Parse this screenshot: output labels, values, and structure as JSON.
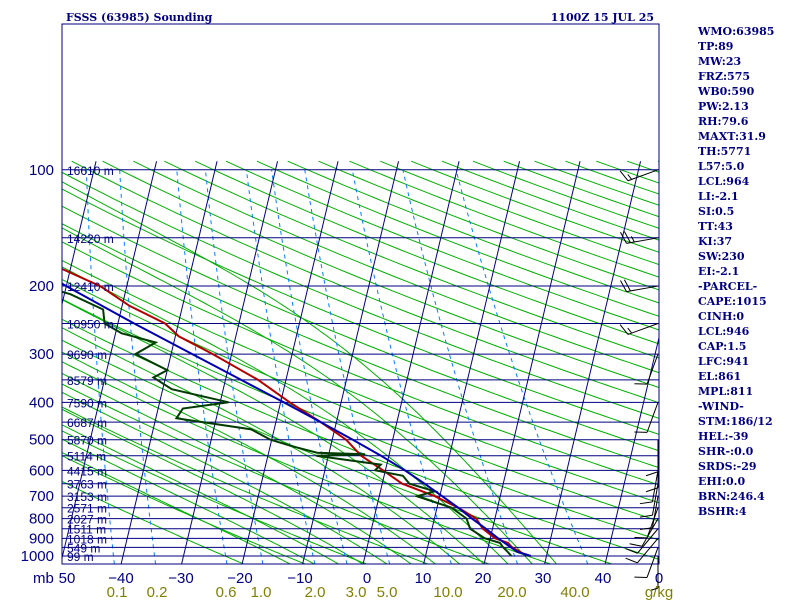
{
  "chart_data": {
    "type": "line",
    "title": "FSSS (63985) Sounding",
    "valid_time": "1100Z 15 JUL 25",
    "pressure_axis_label": "mb",
    "temperature_axis_label": "",
    "pressure_range": [
      1000,
      100
    ],
    "temperature_range": [
      -50,
      0
    ],
    "pressure_ticks": [
      "100",
      "200",
      "300",
      "400",
      "500",
      "600",
      "700",
      "800",
      "900",
      "1000"
    ],
    "temperature_ticks": [
      "50",
      "−40",
      "−30",
      "−20",
      "−10",
      "0",
      "10",
      "20",
      "30",
      "40",
      "0"
    ],
    "mixing_ratio_ticks": [
      "0.1",
      "0.2",
      "0.6",
      "1.0",
      "2.0",
      "3.0",
      "5.0",
      "10.0",
      "20.0",
      "40.0",
      "g/kg"
    ],
    "height_levels": [
      {
        "p": 100,
        "label": "16610 m"
      },
      {
        "p": 150,
        "label": "14220 m"
      },
      {
        "p": 200,
        "label": "12410 m"
      },
      {
        "p": 250,
        "label": "10950 m"
      },
      {
        "p": 300,
        "label": "9690 m"
      },
      {
        "p": 350,
        "label": "8579 m"
      },
      {
        "p": 400,
        "label": "7590 m"
      },
      {
        "p": 450,
        "label": "6687 m"
      },
      {
        "p": 500,
        "label": "5870 m"
      },
      {
        "p": 550,
        "label": "5114 m"
      },
      {
        "p": 600,
        "label": "4415 m"
      },
      {
        "p": 650,
        "label": "3763 m"
      },
      {
        "p": 700,
        "label": "3153 m"
      },
      {
        "p": 750,
        "label": "2571 m"
      },
      {
        "p": 800,
        "label": "2027 m"
      },
      {
        "p": 850,
        "label": "1511 m"
      },
      {
        "p": 900,
        "label": "1018 m"
      },
      {
        "p": 950,
        "label": "549 m"
      },
      {
        "p": 1000,
        "label": "99 m"
      }
    ],
    "series": [
      {
        "key": "temperature",
        "color": "#b40000",
        "points": [
          {
            "p": 1000,
            "t": 27.4
          },
          {
            "p": 985,
            "t": 26.0
          },
          {
            "p": 950,
            "t": 24.0
          },
          {
            "p": 925,
            "t": 23.1
          },
          {
            "p": 900,
            "t": 20.8
          },
          {
            "p": 850,
            "t": 18.4
          },
          {
            "p": 800,
            "t": 16.9
          },
          {
            "p": 750,
            "t": 13.5
          },
          {
            "p": 700,
            "t": 9.2
          },
          {
            "p": 650,
            "t": 3.3
          },
          {
            "p": 600,
            "t": -0.4
          },
          {
            "p": 550,
            "t": -4.6
          },
          {
            "p": 500,
            "t": -7.7
          },
          {
            "p": 450,
            "t": -12.6
          },
          {
            "p": 400,
            "t": -18.5
          },
          {
            "p": 350,
            "t": -24.6
          },
          {
            "p": 300,
            "t": -33.1
          },
          {
            "p": 270,
            "t": -39.4
          },
          {
            "p": 250,
            "t": -42.2
          },
          {
            "p": 225,
            "t": -48.8
          },
          {
            "p": 200,
            "t": -54.4
          },
          {
            "p": 170,
            "t": -65.5
          },
          {
            "p": 150,
            "t": -69.3
          },
          {
            "p": 125,
            "t": -77.4
          },
          {
            "p": 110,
            "t": -80.4
          },
          {
            "p": 100,
            "t": -75.9
          }
        ]
      },
      {
        "key": "dewpoint",
        "color": "#003c00",
        "points": [
          {
            "p": 1000,
            "t": 24.2
          },
          {
            "p": 975,
            "t": 23.4
          },
          {
            "p": 950,
            "t": 22.5
          },
          {
            "p": 925,
            "t": 21.8
          },
          {
            "p": 900,
            "t": 19.1
          },
          {
            "p": 850,
            "t": 16.3
          },
          {
            "p": 800,
            "t": 15.3
          },
          {
            "p": 750,
            "t": 12.4
          },
          {
            "p": 700,
            "t": 6.2
          },
          {
            "p": 680,
            "t": 9.0
          },
          {
            "p": 650,
            "t": 4.5
          },
          {
            "p": 620,
            "t": 3.1
          },
          {
            "p": 600,
            "t": -1.7
          },
          {
            "p": 580,
            "t": -1.0
          },
          {
            "p": 560,
            "t": -8.3
          },
          {
            "p": 550,
            "t": -12.0
          },
          {
            "p": 545,
            "t": -4.0
          },
          {
            "p": 540,
            "t": -12.0
          },
          {
            "p": 520,
            "t": -16.3
          },
          {
            "p": 500,
            "t": -20.2
          },
          {
            "p": 470,
            "t": -23.8
          },
          {
            "p": 440,
            "t": -36.6
          },
          {
            "p": 415,
            "t": -35.9
          },
          {
            "p": 400,
            "t": -28.6
          },
          {
            "p": 370,
            "t": -38.5
          },
          {
            "p": 345,
            "t": -42.0
          },
          {
            "p": 330,
            "t": -40.0
          },
          {
            "p": 300,
            "t": -45.9
          },
          {
            "p": 280,
            "t": -43.0
          },
          {
            "p": 265,
            "t": -49.0
          },
          {
            "p": 250,
            "t": -52.2
          },
          {
            "p": 230,
            "t": -53.0
          },
          {
            "p": 210,
            "t": -59.0
          },
          {
            "p": 200,
            "t": -64.0
          },
          {
            "p": 170,
            "t": -78.0
          },
          {
            "p": 155,
            "t": -79.4
          },
          {
            "p": 140,
            "t": -79.0
          },
          {
            "p": 125,
            "t": -81.0
          },
          {
            "p": 110,
            "t": -85.0
          },
          {
            "p": 100,
            "t": -88.0
          }
        ]
      },
      {
        "key": "parcel",
        "color": "#0000b0",
        "points": [
          {
            "p": 1000,
            "t": 27.4
          },
          {
            "p": 975,
            "t": 25.0
          },
          {
            "p": 950,
            "t": 23.8
          },
          {
            "p": 900,
            "t": 21.3
          },
          {
            "p": 850,
            "t": 18.9
          },
          {
            "p": 800,
            "t": 16.2
          },
          {
            "p": 750,
            "t": 13.5
          },
          {
            "p": 700,
            "t": 10.4
          },
          {
            "p": 650,
            "t": 7.0
          },
          {
            "p": 600,
            "t": 3.2
          },
          {
            "p": 550,
            "t": -1.3
          },
          {
            "p": 500,
            "t": -6.6
          },
          {
            "p": 450,
            "t": -12.6
          },
          {
            "p": 400,
            "t": -19.5
          },
          {
            "p": 350,
            "t": -27.4
          },
          {
            "p": 300,
            "t": -36.5
          },
          {
            "p": 250,
            "t": -47.3
          },
          {
            "p": 200,
            "t": -60.0
          },
          {
            "p": 150,
            "t": -75.3
          },
          {
            "p": 125,
            "t": -84.5
          }
        ]
      }
    ],
    "winds": [
      {
        "p": 1000,
        "dir": 180,
        "spd": 5
      },
      {
        "p": 950,
        "dir": 200,
        "spd": 10
      },
      {
        "p": 900,
        "dir": 220,
        "spd": 10
      },
      {
        "p": 850,
        "dir": 220,
        "spd": 10
      },
      {
        "p": 800,
        "dir": 210,
        "spd": 10
      },
      {
        "p": 750,
        "dir": 200,
        "spd": 10
      },
      {
        "p": 700,
        "dir": 190,
        "spd": 10
      },
      {
        "p": 650,
        "dir": 190,
        "spd": 10
      },
      {
        "p": 600,
        "dir": 190,
        "spd": 10
      },
      {
        "p": 550,
        "dir": 180,
        "spd": 10
      },
      {
        "p": 500,
        "dir": 180,
        "spd": 10
      },
      {
        "p": 400,
        "dir": 200,
        "spd": 10
      },
      {
        "p": 300,
        "dir": 200,
        "spd": 10
      },
      {
        "p": 250,
        "dir": 250,
        "spd": 15
      },
      {
        "p": 200,
        "dir": 260,
        "spd": 20
      },
      {
        "p": 150,
        "dir": 260,
        "spd": 25
      },
      {
        "p": 100,
        "dir": 250,
        "spd": 15
      }
    ],
    "grid": true,
    "colors": {
      "isobar": "#000080",
      "isotherm": "#000080",
      "dry_adiabat": "#00b000",
      "moist_adiabat": "#00b000",
      "mixing_ratio": "#0080ff",
      "frame": "#000080",
      "mixing_label": "#808000",
      "wind": "#000000"
    }
  },
  "indices": [
    "WMO:63985",
    "TP:89",
    "MW:23",
    "FRZ:575",
    "WB0:590",
    "PW:2.13",
    "RH:79.6",
    "MAXT:31.9",
    "TH:5771",
    "L57:5.0",
    "LCL:964",
    "LI:-2.1",
    "SI:0.5",
    "TT:43",
    "KI:37",
    "SW:230",
    "EI:-2.1",
    "-PARCEL-",
    "CAPE:1015",
    "CINH:0",
    "LCL:946",
    "CAP:1.5",
    "LFC:941",
    "EL:861",
    "MPL:811",
    "-WIND-",
    "STM:186/12",
    "HEL:-39",
    "SHR-:0.0",
    "SRDS:-29",
    "EHI:0.0",
    "BRN:246.4",
    "BSHR:4"
  ]
}
